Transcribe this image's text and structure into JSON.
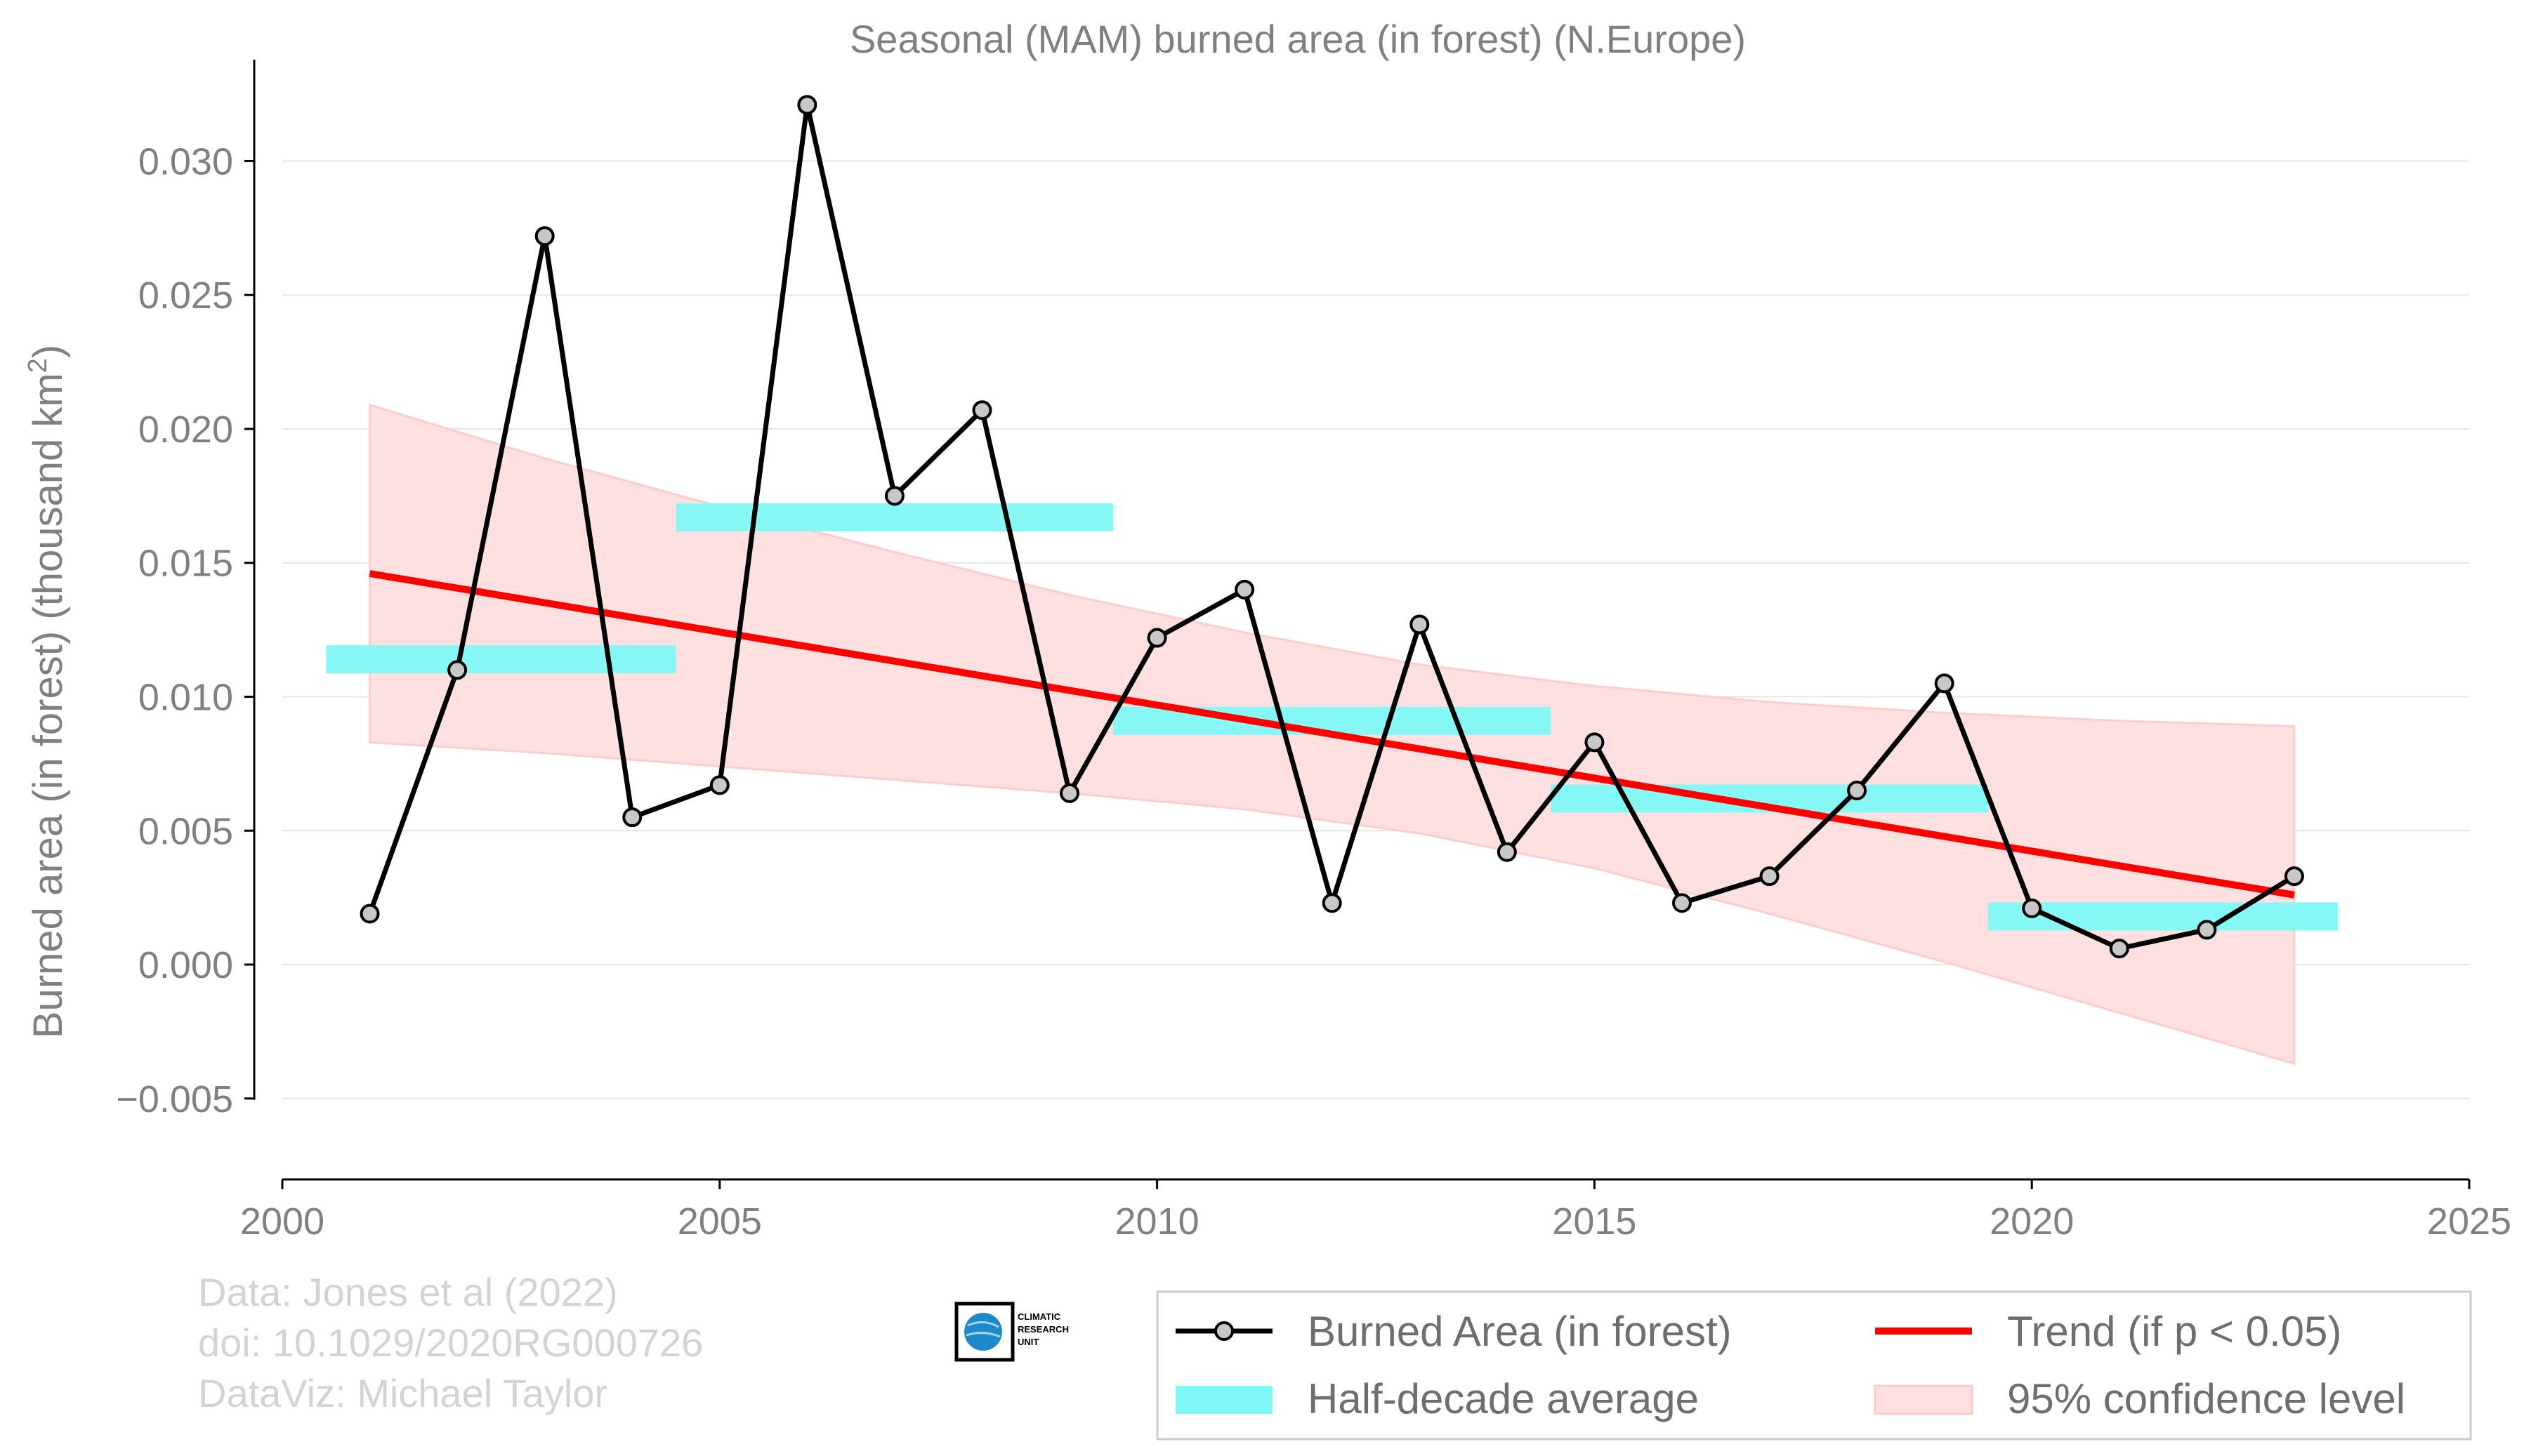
{
  "chart_data": {
    "type": "line",
    "title": "Seasonal (MAM) burned area (in forest) (N.Europe)",
    "ylabel": "Burned area (in forest) (thousand km",
    "ylabel_sup": "2",
    "ylabel_end": ")",
    "xlabel": "",
    "xlim": [
      2000,
      2025
    ],
    "ylim": [
      -0.0065,
      0.033
    ],
    "x_ticks": [
      2000,
      2005,
      2010,
      2015,
      2020,
      2025
    ],
    "y_ticks": [
      -0.005,
      0.0,
      0.005,
      0.01,
      0.015,
      0.02,
      0.025,
      0.03
    ],
    "x_tick_labels": [
      "2000",
      "2005",
      "2010",
      "2015",
      "2020",
      "2025"
    ],
    "y_tick_labels": [
      "−0.005",
      "0.000",
      "0.005",
      "0.010",
      "0.015",
      "0.020",
      "0.025",
      "0.030"
    ],
    "grid": "horizontal",
    "series": [
      {
        "name": "Burned Area (in forest)",
        "color": "#000000",
        "x": [
          2001,
          2002,
          2003,
          2004,
          2005,
          2006,
          2007,
          2008,
          2009,
          2010,
          2011,
          2012,
          2013,
          2014,
          2015,
          2016,
          2017,
          2018,
          2019,
          2020,
          2021,
          2022,
          2023
        ],
        "y": [
          0.0019,
          0.011,
          0.0272,
          0.0055,
          0.0067,
          0.0321,
          0.0175,
          0.0207,
          0.0064,
          0.0122,
          0.014,
          0.0023,
          0.0127,
          0.0042,
          0.0083,
          0.0023,
          0.0033,
          0.0065,
          0.0105,
          0.0021,
          0.0006,
          0.0013,
          0.0033
        ]
      }
    ],
    "half_decade_average": {
      "name": "Half-decade average",
      "color": "#7ff9f7",
      "segments": [
        {
          "x0": 2000.5,
          "x1": 2004.5,
          "y": 0.0114
        },
        {
          "x0": 2004.5,
          "x1": 2009.5,
          "y": 0.0167
        },
        {
          "x0": 2009.5,
          "x1": 2014.5,
          "y": 0.0091
        },
        {
          "x0": 2014.5,
          "x1": 2019.5,
          "y": 0.0062
        },
        {
          "x0": 2019.5,
          "x1": 2023.5,
          "y": 0.0018
        }
      ]
    },
    "trend": {
      "name": "Trend (if p < 0.05)",
      "color": "#ff0000",
      "x": [
        2001,
        2023
      ],
      "y": [
        0.0146,
        0.0026
      ]
    },
    "confidence_band": {
      "name": "95% confidence level",
      "color": "#ffcccc",
      "x": [
        2001,
        2003,
        2005,
        2007,
        2009,
        2011,
        2013,
        2015,
        2017,
        2019,
        2021,
        2023
      ],
      "upper": [
        0.0209,
        0.0189,
        0.0171,
        0.0154,
        0.0138,
        0.0124,
        0.0112,
        0.0104,
        0.0098,
        0.0094,
        0.0091,
        0.0089
      ],
      "lower": [
        0.0083,
        0.0079,
        0.0074,
        0.0069,
        0.0064,
        0.0058,
        0.0049,
        0.0036,
        0.0019,
        0.0001,
        -0.0018,
        -0.0037
      ]
    },
    "legend_position": "bottom-right"
  },
  "credits": {
    "line1": "Data: Jones et al (2022)",
    "line2": "doi: 10.1029/2020RG000726",
    "line3": "DataViz: Michael Taylor"
  },
  "logo": {
    "line1": "CLIMATIC",
    "line2": "RESEARCH",
    "line3": "UNIT"
  },
  "legend": {
    "burned": "Burned Area (in forest)",
    "average": "Half-decade average",
    "trend": "Trend (if p < 0.05)",
    "confidence": "95% confidence level"
  }
}
